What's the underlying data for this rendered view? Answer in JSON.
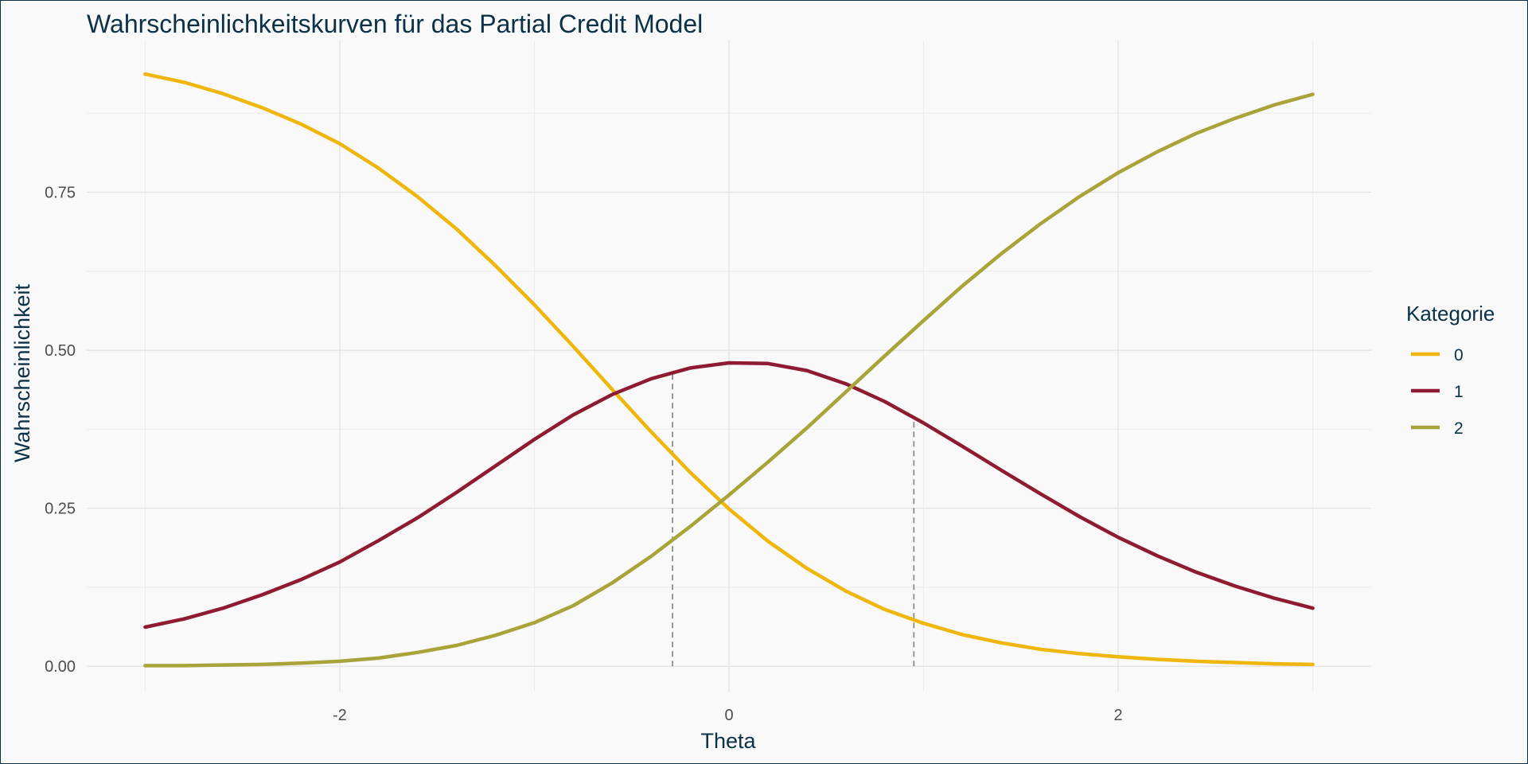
{
  "chart_data": {
    "type": "line",
    "title": "Wahrscheinlichkeitskurven für das Partial Credit Model",
    "xlabel": "Theta",
    "ylabel": "Wahrscheinlichkeit",
    "xlim": [
      -3.3,
      3.3
    ],
    "ylim": [
      -0.04,
      0.99
    ],
    "x_ticks": [
      -2,
      0,
      2
    ],
    "x_tick_labels": [
      "-2",
      "0",
      "2"
    ],
    "y_ticks": [
      0,
      0.25,
      0.5,
      0.75
    ],
    "y_tick_labels": [
      "0.00",
      "0.25",
      "0.50",
      "0.75"
    ],
    "grid": true,
    "legend": {
      "title": "Kategorie",
      "placement": "right"
    },
    "thresholds": [
      -0.29,
      0.95
    ],
    "x": [
      -3.0,
      -2.8,
      -2.6,
      -2.4,
      -2.2,
      -2.0,
      -1.8,
      -1.6,
      -1.4,
      -1.2,
      -1.0,
      -0.8,
      -0.6,
      -0.4,
      -0.2,
      0.0,
      0.2,
      0.4,
      0.6,
      0.8,
      1.0,
      1.2,
      1.4,
      1.6,
      1.8,
      2.0,
      2.2,
      2.4,
      2.6,
      2.8,
      3.0
    ],
    "series": [
      {
        "name": "0",
        "color": "#efb60d",
        "values": [
          0.937,
          0.924,
          0.906,
          0.884,
          0.858,
          0.827,
          0.788,
          0.743,
          0.692,
          0.634,
          0.572,
          0.506,
          0.438,
          0.371,
          0.307,
          0.249,
          0.198,
          0.155,
          0.119,
          0.09,
          0.068,
          0.05,
          0.037,
          0.027,
          0.02,
          0.015,
          0.011,
          0.008,
          0.006,
          0.004,
          0.003
        ]
      },
      {
        "name": "1",
        "color": "#8f1b33",
        "values": [
          0.062,
          0.075,
          0.092,
          0.113,
          0.137,
          0.165,
          0.199,
          0.235,
          0.275,
          0.317,
          0.359,
          0.398,
          0.43,
          0.455,
          0.472,
          0.48,
          0.479,
          0.468,
          0.447,
          0.419,
          0.385,
          0.348,
          0.31,
          0.273,
          0.237,
          0.204,
          0.175,
          0.149,
          0.127,
          0.108,
          0.092
        ]
      },
      {
        "name": "2",
        "color": "#a9a43a",
        "values": [
          0.001,
          0.001,
          0.002,
          0.003,
          0.005,
          0.008,
          0.013,
          0.022,
          0.033,
          0.049,
          0.069,
          0.096,
          0.132,
          0.174,
          0.221,
          0.271,
          0.323,
          0.377,
          0.434,
          0.491,
          0.547,
          0.602,
          0.653,
          0.7,
          0.743,
          0.781,
          0.814,
          0.843,
          0.867,
          0.888,
          0.905
        ]
      }
    ]
  }
}
